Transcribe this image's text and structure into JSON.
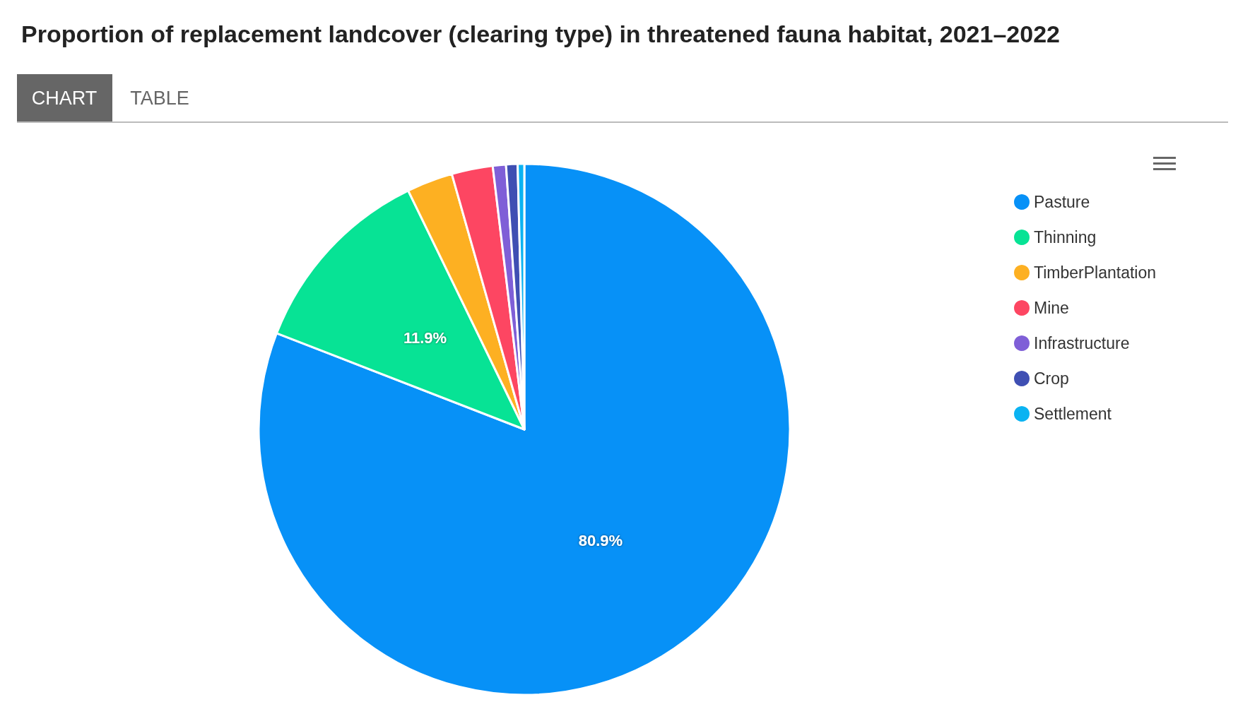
{
  "chart_data": {
    "type": "pie",
    "title": "Proportion of replacement landcover (clearing type) in threatened fauna habitat, 2021–2022",
    "categories": [
      "Pasture",
      "Thinning",
      "TimberPlantation",
      "Mine",
      "Infrastructure",
      "Crop",
      "Settlement"
    ],
    "values": [
      80.9,
      11.9,
      2.8,
      2.5,
      0.8,
      0.7,
      0.4
    ],
    "value_labels": [
      "80.9%",
      "11.9%",
      null,
      null,
      null,
      null,
      null
    ],
    "colors": [
      "#0791f7",
      "#07e395",
      "#fdb022",
      "#fd4662",
      "#7f5fd7",
      "#3f4fb3",
      "#0bb3f2"
    ],
    "annotations": [
      "CHART",
      "TABLE"
    ],
    "legend": "top right"
  }
}
